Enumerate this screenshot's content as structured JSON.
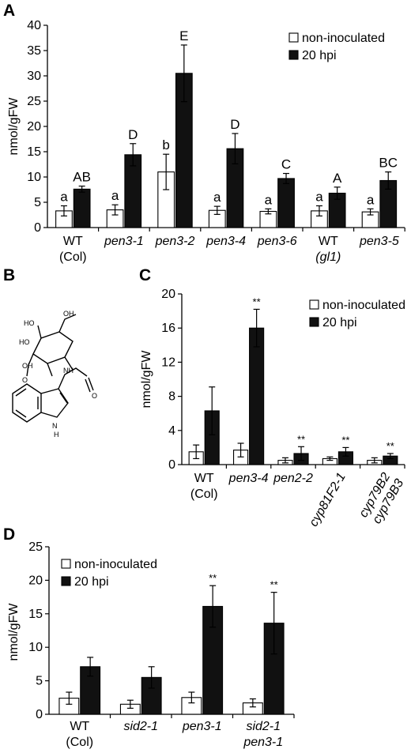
{
  "panels": {
    "A": "A",
    "B": "B",
    "C": "C",
    "D": "D"
  },
  "legend": {
    "non_inoculated": "non-inoculated",
    "hpi20": "20 hpi"
  },
  "colors": {
    "non_inoculated": "#ffffff",
    "hpi20": "#111111",
    "bar_stroke": "#000000"
  },
  "structure_labels": {
    "ho1": "HO",
    "ho2": "HO",
    "oh1": "OH",
    "oh2": "OH",
    "nh1": "NH",
    "o": "O",
    "h": "H",
    "n": "N"
  },
  "chart_data": [
    {
      "id": "A",
      "type": "bar",
      "ylabel": "nmol/gFW",
      "ylim": [
        0,
        40
      ],
      "yticks": [
        0,
        5,
        10,
        15,
        20,
        25,
        30,
        35,
        40
      ],
      "categories": [
        {
          "line1": "WT",
          "line2": "(Col)",
          "italic1": false,
          "italic2": false
        },
        {
          "line1": "pen3-1",
          "line2": "",
          "italic1": true,
          "italic2": false
        },
        {
          "line1": "pen3-2",
          "line2": "",
          "italic1": true,
          "italic2": false
        },
        {
          "line1": "pen3-4",
          "line2": "",
          "italic1": true,
          "italic2": false
        },
        {
          "line1": "pen3-6",
          "line2": "",
          "italic1": true,
          "italic2": false
        },
        {
          "line1": "WT",
          "line2": "(gl1)",
          "italic1": false,
          "italic2": true
        },
        {
          "line1": "pen3-5",
          "line2": "",
          "italic1": true,
          "italic2": false
        }
      ],
      "series": [
        {
          "name": "non-inoculated",
          "values": [
            3.3,
            3.5,
            11.0,
            3.4,
            3.2,
            3.3,
            3.1
          ],
          "errors": [
            1.0,
            1.0,
            3.5,
            0.8,
            0.5,
            1.0,
            0.6
          ],
          "labels": [
            "a",
            "a",
            "b",
            "a",
            "a",
            "a",
            "a"
          ]
        },
        {
          "name": "20 hpi",
          "values": [
            7.6,
            14.4,
            30.5,
            15.6,
            9.7,
            6.8,
            9.3
          ],
          "errors": [
            0.6,
            2.2,
            5.6,
            3.0,
            1.0,
            1.2,
            1.7
          ],
          "labels": [
            "AB",
            "D",
            "E",
            "D",
            "C",
            "A",
            "BC"
          ]
        }
      ]
    },
    {
      "id": "C",
      "type": "bar",
      "ylabel": "nmol/gFW",
      "ylim": [
        0,
        20
      ],
      "yticks": [
        0,
        4,
        8,
        12,
        16,
        20
      ],
      "categories": [
        {
          "line1": "WT",
          "line2": "(Col)",
          "italic1": false,
          "italic2": false
        },
        {
          "line1": "pen3-4",
          "line2": "",
          "italic1": true,
          "italic2": false
        },
        {
          "line1": "pen2-2",
          "line2": "",
          "italic1": true,
          "italic2": false
        },
        {
          "line1": "cyp81F2-1",
          "line2": "",
          "italic1": true,
          "italic2": false
        },
        {
          "line1": "cyp79B2",
          "line2": "cyp79B3",
          "italic1": true,
          "italic2": true
        }
      ],
      "series": [
        {
          "name": "non-inoculated",
          "values": [
            1.5,
            1.7,
            0.5,
            0.7,
            0.5
          ],
          "errors": [
            0.8,
            0.8,
            0.3,
            0.2,
            0.3
          ],
          "labels": [
            "",
            "",
            "",
            "",
            ""
          ]
        },
        {
          "name": "20 hpi",
          "values": [
            6.3,
            16.0,
            1.3,
            1.5,
            1.0
          ],
          "errors": [
            2.8,
            2.2,
            0.8,
            0.5,
            0.3
          ],
          "labels": [
            "",
            "**",
            "**",
            "**",
            "**"
          ]
        }
      ]
    },
    {
      "id": "D",
      "type": "bar",
      "ylabel": "nmol/gFW",
      "ylim": [
        0,
        25
      ],
      "yticks": [
        0,
        5,
        10,
        15,
        20,
        25
      ],
      "categories": [
        {
          "line1": "WT",
          "line2": "(Col)",
          "italic1": false,
          "italic2": false
        },
        {
          "line1": "sid2-1",
          "line2": "",
          "italic1": true,
          "italic2": false
        },
        {
          "line1": "pen3-1",
          "line2": "",
          "italic1": true,
          "italic2": false
        },
        {
          "line1": "sid2-1",
          "line2": "pen3-1",
          "italic1": true,
          "italic2": true
        }
      ],
      "series": [
        {
          "name": "non-inoculated",
          "values": [
            2.4,
            1.5,
            2.5,
            1.7
          ],
          "errors": [
            0.9,
            0.6,
            0.8,
            0.6
          ],
          "labels": [
            "",
            "",
            "",
            ""
          ]
        },
        {
          "name": "20 hpi",
          "values": [
            7.1,
            5.5,
            16.1,
            13.6
          ],
          "errors": [
            1.4,
            1.6,
            3.1,
            4.6
          ],
          "labels": [
            "",
            "",
            "**",
            "**"
          ]
        }
      ]
    }
  ]
}
